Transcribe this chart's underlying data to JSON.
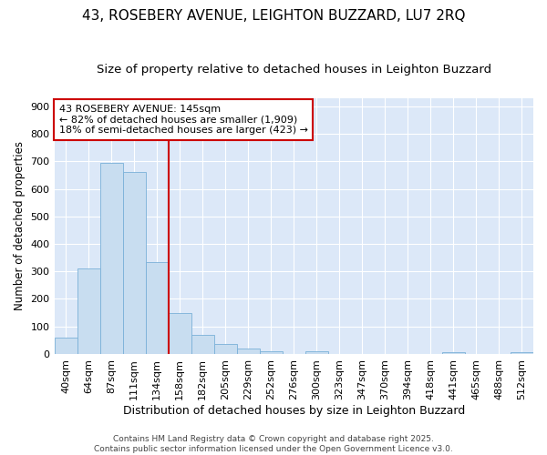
{
  "title1": "43, ROSEBERY AVENUE, LEIGHTON BUZZARD, LU7 2RQ",
  "title2": "Size of property relative to detached houses in Leighton Buzzard",
  "xlabel": "Distribution of detached houses by size in Leighton Buzzard",
  "ylabel": "Number of detached properties",
  "categories": [
    "40sqm",
    "64sqm",
    "87sqm",
    "111sqm",
    "134sqm",
    "158sqm",
    "182sqm",
    "205sqm",
    "229sqm",
    "252sqm",
    "276sqm",
    "300sqm",
    "323sqm",
    "347sqm",
    "370sqm",
    "394sqm",
    "418sqm",
    "441sqm",
    "465sqm",
    "488sqm",
    "512sqm"
  ],
  "values": [
    60,
    310,
    695,
    660,
    335,
    150,
    68,
    35,
    20,
    10,
    0,
    10,
    0,
    0,
    0,
    0,
    0,
    5,
    0,
    0,
    5
  ],
  "bar_color": "#c8ddf0",
  "bar_edge_color": "#7ab0d8",
  "vline_color": "#cc0000",
  "annotation_text": "43 ROSEBERY AVENUE: 145sqm\n← 82% of detached houses are smaller (1,909)\n18% of semi-detached houses are larger (423) →",
  "annotation_box_color": "#ffffff",
  "annotation_box_edge": "#cc0000",
  "ylim": [
    0,
    930
  ],
  "yticks": [
    0,
    100,
    200,
    300,
    400,
    500,
    600,
    700,
    800,
    900
  ],
  "fig_bg_color": "#ffffff",
  "plot_bg_color": "#dce8f8",
  "grid_color": "#ffffff",
  "footer_text": "Contains HM Land Registry data © Crown copyright and database right 2025.\nContains public sector information licensed under the Open Government Licence v3.0.",
  "title1_fontsize": 11,
  "title2_fontsize": 9.5,
  "xlabel_fontsize": 9,
  "ylabel_fontsize": 8.5,
  "tick_fontsize": 8,
  "annotation_fontsize": 8,
  "footer_fontsize": 6.5
}
